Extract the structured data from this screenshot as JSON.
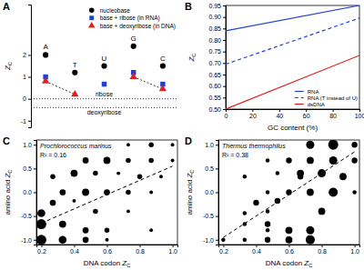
{
  "chart_data": [
    {
      "type": "dot",
      "title": "A",
      "ylabel": "ZC",
      "categories": [
        "A",
        "T",
        "U",
        "G",
        "C"
      ],
      "series": [
        {
          "name": "nucleobase",
          "color": "#000000",
          "marker": "circle",
          "values": [
            2.0,
            1.2,
            1.5,
            2.4,
            1.5
          ]
        },
        {
          "name": "base + ribose (in RNA)",
          "color": "#2040d0",
          "marker": "square",
          "values": [
            1.0,
            null,
            0.667,
            1.2,
            0.667
          ]
        },
        {
          "name": "base + deoxyribose (in DNA)",
          "color": "#e02020",
          "marker": "triangle",
          "values": [
            0.8,
            0.2,
            null,
            1.0,
            0.444
          ],
          "pairs": [
            [
              0,
              1
            ],
            [
              3,
              4
            ]
          ]
        }
      ],
      "reference_lines": [
        {
          "value": 0,
          "label": "ribose"
        },
        {
          "value": -0.4,
          "label": "deoxyribose"
        }
      ],
      "ylim": [
        -1.3,
        4.3
      ],
      "yticks": [
        -1,
        0,
        1,
        2
      ],
      "legend": "top-right",
      "tick_labels": "y"
    },
    {
      "type": "line",
      "title": "B",
      "xlabel": "GC content (%)",
      "ylabel": "ZC",
      "x": [
        0,
        100
      ],
      "series": [
        {
          "name": "RNA",
          "color": "#2040d0",
          "line_style": "solid",
          "values": [
            0.84,
            0.95
          ]
        },
        {
          "name": "RNA (T instead of U)",
          "color": "#2040d0",
          "line_style": "dashed",
          "values": [
            0.695,
            0.895
          ]
        },
        {
          "name": "dsDNA",
          "color": "#e02020",
          "line_style": "solid",
          "values": [
            0.5,
            0.733
          ]
        }
      ],
      "xlim": [
        0,
        100
      ],
      "xticks": [
        0,
        20,
        40,
        60,
        80,
        100
      ],
      "ylim": [
        0.5,
        0.95
      ],
      "yticks": [
        {
          "value": 0.5,
          "label": "0.50"
        },
        0.55,
        {
          "value": 0.6,
          "label": "0.60"
        },
        0.65,
        {
          "value": 0.7,
          "label": "0.70"
        },
        0.75,
        {
          "value": 0.8,
          "label": "0.80"
        },
        0.85,
        {
          "value": 0.9,
          "label": "0.90"
        },
        0.95
      ],
      "legend": "bottom-right"
    },
    {
      "type": "scatter",
      "title": "C",
      "xlabel": "DNA codon ZC",
      "ylabel": "amino acid ZC",
      "annotations": [
        "Prochlorococcus marinus",
        "R² = 0.16"
      ],
      "series": [
        {
          "type": "scatter",
          "color": "#000000",
          "marker": "circle",
          "x": [
            0.73,
            0.87,
            1.0,
            0.47,
            0.6,
            0.73,
            0.87,
            1.0,
            0.4,
            0.53,
            0.67,
            0.8,
            0.93,
            0.27,
            0.33,
            0.47,
            0.6,
            0.73,
            0.87,
            0.4,
            0.27,
            0.53,
            0.2,
            0.73,
            0.2,
            0.33,
            0.47,
            0.6,
            0.87,
            0.2,
            0.33,
            0.47,
            0.6
          ],
          "values": [
            1.0,
            1.0,
            1.0,
            0.67,
            0.67,
            0.67,
            0.67,
            0.67,
            0.4,
            0.4,
            0.4,
            0.33,
            0.33,
            0.33,
            0.0,
            0.0,
            0.0,
            0.0,
            0.0,
            -0.18,
            -0.22,
            -0.4,
            -0.44,
            -0.4,
            -0.67,
            -0.67,
            -0.8,
            -0.8,
            -0.8,
            -1.0,
            -1.0,
            -1.0,
            -1.0
          ],
          "sizes": [
            1,
            2,
            1,
            3,
            4,
            2,
            2,
            1,
            4,
            2,
            1,
            2,
            1,
            2,
            3,
            4,
            3,
            2,
            1,
            1,
            3,
            2,
            5,
            1,
            8,
            4,
            3,
            2,
            1,
            8,
            5,
            3,
            1
          ]
        },
        {
          "type": "line",
          "color": "#000000",
          "line_style": "dashed",
          "x": [
            0.2,
            1.0
          ],
          "values": [
            -0.65,
            0.55
          ]
        }
      ],
      "xlim": [
        0.17,
        1.03
      ],
      "xticks": [
        0.2,
        0.4,
        0.6,
        0.8,
        {
          "value": 1.0,
          "label": "1.0"
        }
      ],
      "ylim": [
        -1.1,
        1.1
      ],
      "yticks": [
        {
          "value": -1.0,
          "label": "-1.0"
        },
        -0.5,
        {
          "value": 0.0,
          "label": "0.0"
        },
        0.5,
        {
          "value": 1.0,
          "label": "1.0"
        }
      ]
    },
    {
      "type": "scatter",
      "title": "D",
      "xlabel": "DNA codon ZC",
      "ylabel": "amino acid ZC",
      "annotations": [
        "Thermus thermophilus",
        "R² = 0.38"
      ],
      "series": [
        {
          "type": "scatter",
          "color": "#000000",
          "marker": "circle",
          "x": [
            0.73,
            0.87,
            1.0,
            0.47,
            0.6,
            0.73,
            0.87,
            1.0,
            0.53,
            0.67,
            0.8,
            0.93,
            0.67,
            0.33,
            0.47,
            0.6,
            0.73,
            0.87,
            1.0,
            0.53,
            0.4,
            0.47,
            0.8,
            0.33,
            0.47,
            0.33,
            0.6,
            0.73,
            0.47,
            0.33,
            0.47,
            0.6,
            0.73,
            0.2
          ],
          "values": [
            1.0,
            1.0,
            1.0,
            0.67,
            0.67,
            0.67,
            0.67,
            0.67,
            0.4,
            0.4,
            0.4,
            0.33,
            0.33,
            0.33,
            0.0,
            0.0,
            0.0,
            0.0,
            0.0,
            -0.18,
            -0.22,
            -0.4,
            -0.4,
            -0.44,
            -0.67,
            -0.67,
            -0.8,
            -0.8,
            -0.8,
            -1.0,
            -1.0,
            -1.0,
            -1.0,
            -1.0
          ],
          "sizes": [
            4,
            6,
            2,
            1,
            2,
            3,
            4,
            2,
            1,
            3,
            4,
            3,
            2,
            1,
            1,
            2,
            3,
            5,
            1,
            2,
            2,
            1,
            3,
            1,
            2,
            1,
            3,
            4,
            1,
            1,
            2,
            3,
            5,
            1
          ]
        },
        {
          "type": "line",
          "color": "#000000",
          "line_style": "dashed",
          "x": [
            0.2,
            1.0
          ],
          "values": [
            -0.95,
            0.85
          ]
        }
      ],
      "xlim": [
        0.17,
        1.03
      ],
      "xticks": [
        0.2,
        0.4,
        0.6,
        0.8,
        {
          "value": 1.0,
          "label": "1.0"
        }
      ],
      "ylim": [
        -1.1,
        1.1
      ],
      "yticks": [
        {
          "value": -1.0,
          "label": "-1.0"
        },
        -0.5,
        {
          "value": 0.0,
          "label": "0.0"
        },
        0.5,
        {
          "value": 1.0,
          "label": "1.0"
        }
      ]
    }
  ]
}
